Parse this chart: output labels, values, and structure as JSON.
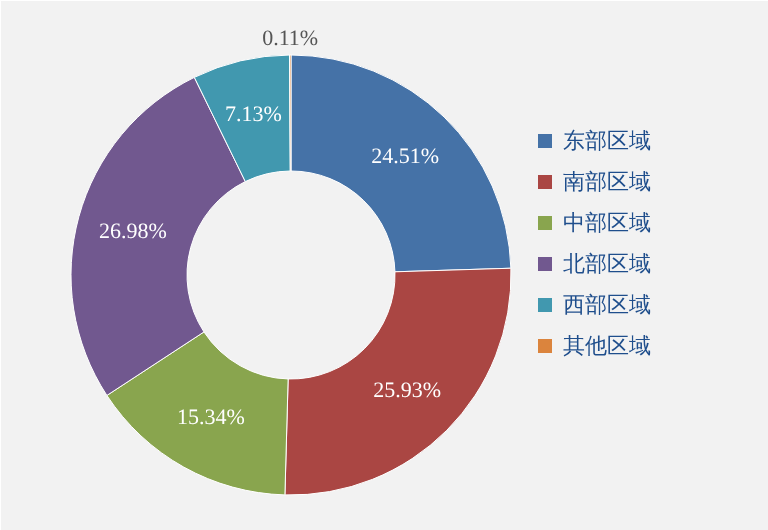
{
  "chart_data": {
    "type": "donut",
    "categories": [
      "东部区域",
      "南部区域",
      "中部区域",
      "北部区域",
      "西部区域",
      "其他区域"
    ],
    "values": [
      24.51,
      25.93,
      15.34,
      26.98,
      7.13,
      0.11
    ],
    "colors": [
      "#4572a7",
      "#aa4643",
      "#89a54e",
      "#71588f",
      "#4198af",
      "#db843d"
    ],
    "value_labels": [
      "24.51%",
      "25.93%",
      "15.34%",
      "26.98%",
      "7.13%",
      "0.11%"
    ],
    "legend": "right"
  }
}
